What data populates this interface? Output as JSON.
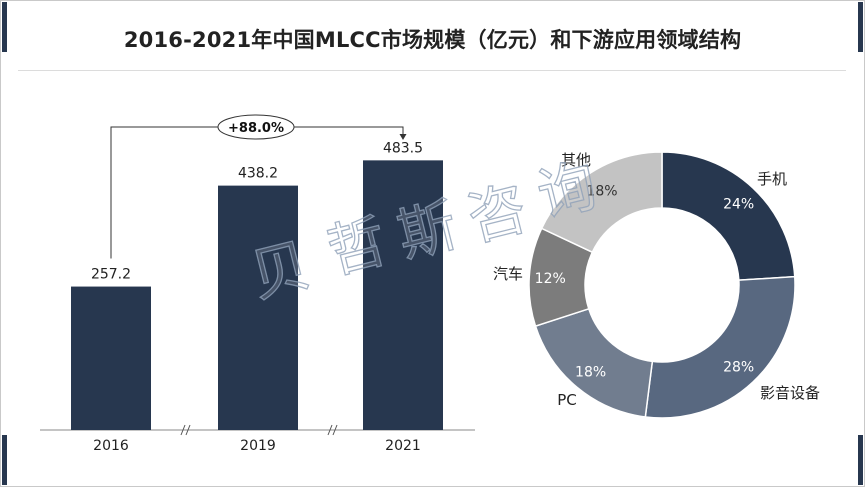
{
  "title": "2016-2021年中国MLCC市场规模（亿元）和下游应用领域结构",
  "watermark": "贝哲斯咨询",
  "colors": {
    "bar": "#27374f",
    "phone": "#27374f",
    "av": "#586880",
    "pc": "#717d8f",
    "auto": "#7c7c7c",
    "other": "#c3c3c3",
    "corner": "#27374f"
  },
  "growth_label": "+88.0%",
  "chart_data": [
    {
      "type": "bar",
      "categories": [
        "2016",
        "2019",
        "2021"
      ],
      "values": [
        257.2,
        438.2,
        483.5
      ],
      "value_labels": [
        "257.2",
        "438.2",
        "483.5"
      ],
      "ylim": [
        0,
        520
      ],
      "axis_breaks": true,
      "grid": false
    },
    {
      "type": "pie",
      "donut": true,
      "labels": [
        "手机",
        "影音设备",
        "PC",
        "汽车",
        "其他"
      ],
      "values": [
        24,
        28,
        18,
        12,
        18
      ],
      "value_labels": [
        "24%",
        "28%",
        "18%",
        "12%",
        "18%"
      ],
      "colors": [
        "#27374f",
        "#586880",
        "#717d8f",
        "#7c7c7c",
        "#c3c3c3"
      ]
    }
  ]
}
